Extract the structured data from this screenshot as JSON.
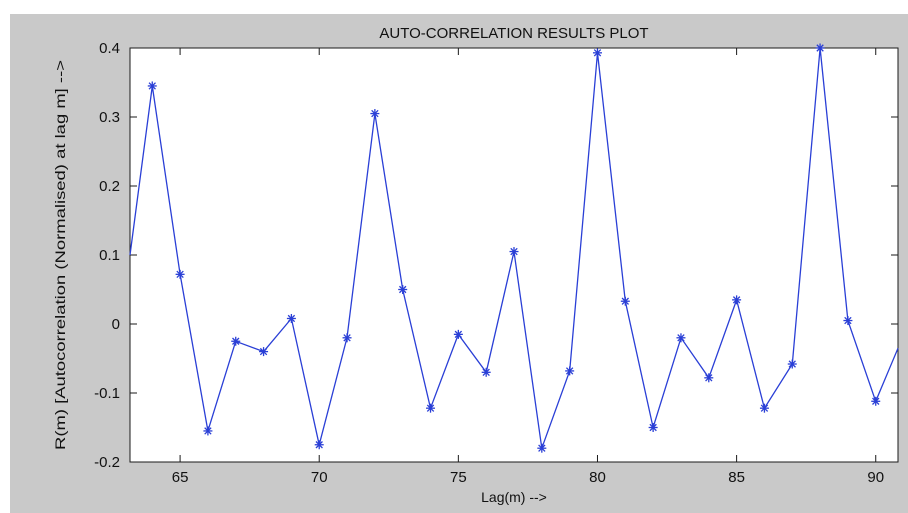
{
  "chart_data": {
    "type": "line",
    "title": "AUTO-CORRELATION RESULTS PLOT",
    "xlabel": "Lag(m) -->",
    "ylabel": "R(m) [Autocorrelation (Normalised) at lag m] -->",
    "xlim": [
      63.2,
      90.8
    ],
    "ylim": [
      -0.2,
      0.4
    ],
    "xticks": [
      65,
      70,
      75,
      80,
      85,
      90
    ],
    "yticks": [
      -0.2,
      -0.1,
      0,
      0.1,
      0.2,
      0.3,
      0.4
    ],
    "ytick_labels": [
      "-0.2",
      "-0.1",
      "0",
      "0.1",
      "0.2",
      "0.3",
      "0.4"
    ],
    "grid": false,
    "marker": "*",
    "line_color": "#2a3fd6",
    "series": [
      {
        "x": [
          63.2,
          64,
          65,
          66,
          67,
          68,
          69,
          70,
          71,
          72,
          73,
          74,
          75,
          76,
          77,
          78,
          79,
          80,
          81,
          82,
          83,
          84,
          85,
          86,
          87,
          88,
          89,
          90,
          90.8
        ],
        "values": [
          0.1,
          0.345,
          0.072,
          -0.155,
          -0.025,
          -0.04,
          0.008,
          -0.175,
          -0.02,
          0.305,
          0.05,
          -0.122,
          -0.015,
          -0.07,
          0.105,
          -0.18,
          -0.068,
          0.393,
          0.033,
          -0.15,
          -0.02,
          -0.078,
          0.035,
          -0.122,
          -0.058,
          0.4,
          0.005,
          -0.112,
          -0.035
        ],
        "markers": [
          false,
          true,
          true,
          true,
          true,
          true,
          true,
          true,
          true,
          true,
          true,
          true,
          true,
          true,
          true,
          true,
          true,
          true,
          true,
          true,
          true,
          true,
          true,
          true,
          true,
          true,
          true,
          true,
          false
        ]
      }
    ]
  }
}
